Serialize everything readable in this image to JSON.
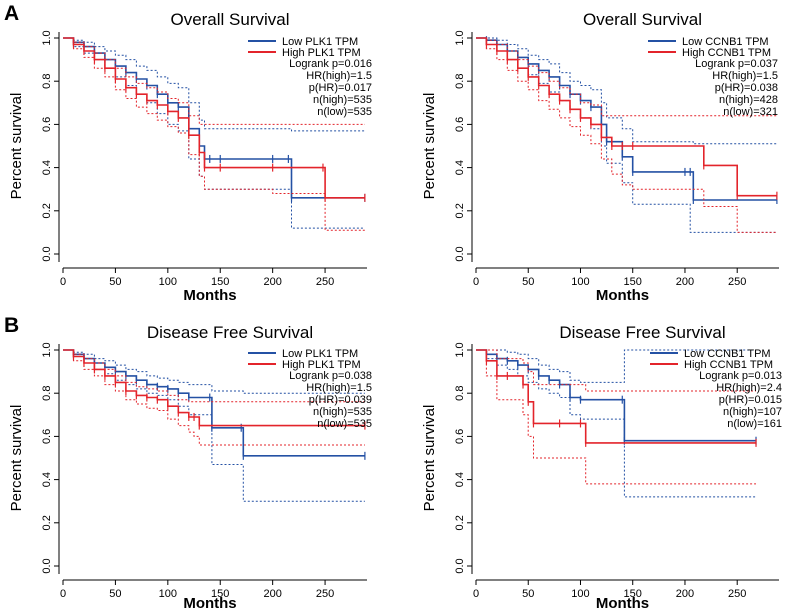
{
  "panel_letters": [
    "A",
    "B"
  ],
  "colors": {
    "low": "#2451a4",
    "high": "#e3242b",
    "axis": "#000000"
  },
  "chart_data": [
    {
      "type": "line",
      "title": "Overall Survival",
      "xlabel": "Months",
      "ylabel": "Percent survival",
      "xlim": [
        0,
        290
      ],
      "ylim": [
        0,
        1
      ],
      "xticks": [
        0,
        50,
        100,
        150,
        200,
        250
      ],
      "yticks": [
        0.0,
        0.2,
        0.4,
        0.6,
        0.8,
        1.0
      ],
      "ytick_labels": [
        "0.0",
        "0.2",
        "0.4",
        "0.6",
        "0.8",
        "1.0"
      ],
      "legend": {
        "position": "top-right",
        "entries": [
          "Low PLK1 TPM",
          "High PLK1 TPM"
        ]
      },
      "stats": [
        "Logrank p=0.016",
        "HR(high)=1.5",
        "p(HR)=0.017",
        "n(high)=535",
        "n(low)=535"
      ],
      "series": [
        {
          "name": "Low PLK1 TPM",
          "color": "#2451a4",
          "x": [
            0,
            10,
            20,
            30,
            40,
            50,
            60,
            70,
            80,
            90,
            100,
            110,
            120,
            130,
            135,
            140,
            150,
            200,
            215,
            218,
            288
          ],
          "y": [
            1.0,
            0.98,
            0.96,
            0.93,
            0.9,
            0.87,
            0.84,
            0.81,
            0.78,
            0.74,
            0.7,
            0.68,
            0.58,
            0.5,
            0.44,
            0.44,
            0.44,
            0.44,
            0.44,
            0.26,
            0.26
          ],
          "ci_upper": [
            1.0,
            0.99,
            0.98,
            0.96,
            0.94,
            0.92,
            0.9,
            0.87,
            0.85,
            0.82,
            0.79,
            0.77,
            0.7,
            0.62,
            0.58,
            0.58,
            0.58,
            0.58,
            0.58,
            0.57,
            0.57
          ],
          "ci_lower": [
            1.0,
            0.96,
            0.93,
            0.9,
            0.86,
            0.82,
            0.78,
            0.74,
            0.7,
            0.65,
            0.6,
            0.57,
            0.44,
            0.36,
            0.3,
            0.3,
            0.3,
            0.3,
            0.3,
            0.12,
            0.12
          ]
        },
        {
          "name": "High PLK1 TPM",
          "color": "#e3242b",
          "x": [
            0,
            10,
            20,
            30,
            40,
            50,
            60,
            70,
            80,
            90,
            100,
            110,
            120,
            130,
            135,
            150,
            200,
            248,
            250,
            288
          ],
          "y": [
            1.0,
            0.97,
            0.94,
            0.9,
            0.86,
            0.81,
            0.77,
            0.74,
            0.71,
            0.69,
            0.66,
            0.63,
            0.55,
            0.47,
            0.4,
            0.4,
            0.4,
            0.4,
            0.26,
            0.26
          ],
          "ci_upper": [
            1.0,
            0.98,
            0.96,
            0.93,
            0.9,
            0.86,
            0.82,
            0.79,
            0.77,
            0.75,
            0.72,
            0.7,
            0.64,
            0.6,
            0.6,
            0.6,
            0.6,
            0.6,
            0.6,
            0.6
          ],
          "ci_lower": [
            1.0,
            0.95,
            0.91,
            0.86,
            0.82,
            0.76,
            0.72,
            0.68,
            0.65,
            0.62,
            0.59,
            0.56,
            0.46,
            0.36,
            0.3,
            0.3,
            0.28,
            0.28,
            0.11,
            0.11
          ]
        }
      ]
    },
    {
      "type": "line",
      "title": "Overall Survival",
      "xlabel": "Months",
      "ylabel": "Percent survival",
      "xlim": [
        0,
        290
      ],
      "ylim": [
        0,
        1
      ],
      "xticks": [
        0,
        50,
        100,
        150,
        200,
        250
      ],
      "yticks": [
        0.0,
        0.2,
        0.4,
        0.6,
        0.8,
        1.0
      ],
      "ytick_labels": [
        "0.0",
        "0.2",
        "0.4",
        "0.6",
        "0.8",
        "1.0"
      ],
      "legend": {
        "position": "top-right",
        "entries": [
          "Low CCNB1 TPM",
          "High CCNB1 TPM"
        ]
      },
      "stats": [
        "Logrank p=0.037",
        "HR(high)=1.5",
        "p(HR)=0.038",
        "n(high)=428",
        "n(low)=321"
      ],
      "series": [
        {
          "name": "Low CCNB1 TPM",
          "color": "#2451a4",
          "x": [
            0,
            10,
            20,
            30,
            40,
            50,
            60,
            70,
            80,
            90,
            100,
            110,
            120,
            125,
            140,
            150,
            200,
            205,
            208,
            288
          ],
          "y": [
            1.0,
            0.99,
            0.97,
            0.94,
            0.91,
            0.88,
            0.85,
            0.82,
            0.78,
            0.74,
            0.71,
            0.68,
            0.6,
            0.52,
            0.45,
            0.38,
            0.38,
            0.38,
            0.25,
            0.25
          ],
          "ci_upper": [
            1.0,
            1.0,
            0.99,
            0.97,
            0.95,
            0.92,
            0.9,
            0.88,
            0.84,
            0.8,
            0.78,
            0.76,
            0.7,
            0.63,
            0.58,
            0.52,
            0.52,
            0.52,
            0.51,
            0.51
          ],
          "ci_lower": [
            1.0,
            0.97,
            0.94,
            0.9,
            0.86,
            0.83,
            0.79,
            0.75,
            0.71,
            0.67,
            0.63,
            0.58,
            0.5,
            0.42,
            0.33,
            0.23,
            0.23,
            0.1,
            0.1,
            0.1
          ]
        },
        {
          "name": "High CCNB1 TPM",
          "color": "#e3242b",
          "x": [
            0,
            10,
            20,
            30,
            40,
            50,
            60,
            70,
            80,
            90,
            100,
            110,
            120,
            130,
            140,
            150,
            218,
            250,
            288
          ],
          "y": [
            1.0,
            0.97,
            0.94,
            0.9,
            0.86,
            0.82,
            0.78,
            0.74,
            0.71,
            0.67,
            0.63,
            0.6,
            0.54,
            0.5,
            0.5,
            0.5,
            0.41,
            0.27,
            0.27
          ],
          "ci_upper": [
            1.0,
            0.99,
            0.97,
            0.94,
            0.9,
            0.87,
            0.84,
            0.8,
            0.77,
            0.74,
            0.7,
            0.69,
            0.64,
            0.64,
            0.64,
            0.64,
            0.64,
            0.64,
            0.64
          ],
          "ci_lower": [
            1.0,
            0.95,
            0.9,
            0.85,
            0.8,
            0.76,
            0.71,
            0.67,
            0.63,
            0.59,
            0.55,
            0.51,
            0.44,
            0.37,
            0.32,
            0.3,
            0.22,
            0.1,
            0.1
          ]
        }
      ]
    },
    {
      "type": "line",
      "title": "Disease Free Survival",
      "xlabel": "Months",
      "ylabel": "Percent survival",
      "xlim": [
        0,
        290
      ],
      "ylim": [
        0,
        1
      ],
      "xticks": [
        0,
        50,
        100,
        150,
        200,
        250
      ],
      "yticks": [
        0.0,
        0.2,
        0.4,
        0.6,
        0.8,
        1.0
      ],
      "ytick_labels": [
        "0.0",
        "0.2",
        "0.4",
        "0.6",
        "0.8",
        "1.0"
      ],
      "legend": {
        "position": "top-right",
        "entries": [
          "Low PLK1 TPM",
          "High PLK1 TPM"
        ]
      },
      "stats": [
        "Logrank p=0.038",
        "HR(high)=1.5",
        "p(HR)=0.039",
        "n(high)=535",
        "n(low)=535"
      ],
      "series": [
        {
          "name": "Low PLK1 TPM",
          "color": "#2451a4",
          "x": [
            0,
            10,
            20,
            30,
            40,
            50,
            60,
            70,
            80,
            90,
            100,
            110,
            120,
            140,
            142,
            170,
            172,
            288
          ],
          "y": [
            1.0,
            0.98,
            0.96,
            0.94,
            0.92,
            0.9,
            0.88,
            0.86,
            0.84,
            0.83,
            0.82,
            0.8,
            0.78,
            0.78,
            0.64,
            0.64,
            0.51,
            0.51
          ],
          "ci_upper": [
            1.0,
            0.99,
            0.98,
            0.96,
            0.95,
            0.93,
            0.91,
            0.9,
            0.88,
            0.87,
            0.86,
            0.85,
            0.84,
            0.84,
            0.81,
            0.81,
            0.8,
            0.8
          ],
          "ci_lower": [
            1.0,
            0.97,
            0.94,
            0.91,
            0.89,
            0.86,
            0.84,
            0.82,
            0.8,
            0.79,
            0.77,
            0.74,
            0.7,
            0.7,
            0.47,
            0.47,
            0.3,
            0.3
          ]
        },
        {
          "name": "High PLK1 TPM",
          "color": "#e3242b",
          "x": [
            0,
            10,
            20,
            30,
            40,
            50,
            60,
            70,
            80,
            90,
            100,
            110,
            120,
            125,
            130,
            288
          ],
          "y": [
            1.0,
            0.97,
            0.94,
            0.91,
            0.88,
            0.85,
            0.81,
            0.79,
            0.78,
            0.77,
            0.74,
            0.71,
            0.69,
            0.69,
            0.65,
            0.65
          ],
          "ci_upper": [
            1.0,
            0.98,
            0.96,
            0.94,
            0.91,
            0.88,
            0.85,
            0.83,
            0.82,
            0.81,
            0.79,
            0.77,
            0.76,
            0.76,
            0.76,
            0.76
          ],
          "ci_lower": [
            1.0,
            0.95,
            0.91,
            0.88,
            0.84,
            0.81,
            0.77,
            0.75,
            0.73,
            0.72,
            0.68,
            0.65,
            0.62,
            0.6,
            0.56,
            0.56
          ]
        }
      ]
    },
    {
      "type": "line",
      "title": "Disease Free Survival",
      "xlabel": "Months",
      "ylabel": "Percent survival",
      "xlim": [
        0,
        275
      ],
      "ylim": [
        0,
        1
      ],
      "xticks": [
        0,
        50,
        100,
        150,
        200,
        250
      ],
      "yticks": [
        0.0,
        0.2,
        0.4,
        0.6,
        0.8,
        1.0
      ],
      "ytick_labels": [
        "0.0",
        "0.2",
        "0.4",
        "0.6",
        "0.8",
        "1.0"
      ],
      "legend": {
        "position": "top-right",
        "entries": [
          "Low CCNB1 TPM",
          "High CCNB1 TPM"
        ]
      },
      "stats": [
        "Logrank p=0.013",
        "HR(high)=2.4",
        "p(HR)=0.015",
        "n(high)=107",
        "n(low)=161"
      ],
      "series": [
        {
          "name": "Low CCNB1 TPM",
          "color": "#2451a4",
          "x": [
            0,
            10,
            20,
            30,
            40,
            50,
            60,
            70,
            80,
            90,
            100,
            140,
            142,
            268
          ],
          "y": [
            1.0,
            0.98,
            0.96,
            0.95,
            0.93,
            0.91,
            0.88,
            0.86,
            0.84,
            0.78,
            0.77,
            0.77,
            0.58,
            0.58
          ],
          "ci_upper": [
            1.0,
            1.0,
            1.0,
            0.99,
            0.98,
            0.96,
            0.93,
            0.91,
            0.9,
            0.86,
            0.85,
            0.85,
            1.0,
            1.0
          ],
          "ci_lower": [
            1.0,
            0.96,
            0.93,
            0.91,
            0.88,
            0.85,
            0.82,
            0.8,
            0.78,
            0.7,
            0.68,
            0.68,
            0.32,
            0.32
          ]
        },
        {
          "name": "High CCNB1 TPM",
          "color": "#e3242b",
          "x": [
            0,
            10,
            20,
            30,
            45,
            50,
            55,
            80,
            100,
            105,
            268
          ],
          "y": [
            1.0,
            0.95,
            0.88,
            0.88,
            0.84,
            0.76,
            0.66,
            0.66,
            0.66,
            0.57,
            0.57
          ],
          "ci_upper": [
            1.0,
            1.0,
            0.96,
            0.96,
            0.94,
            0.9,
            0.84,
            0.84,
            0.84,
            0.81,
            0.81
          ],
          "ci_lower": [
            1.0,
            0.88,
            0.77,
            0.77,
            0.7,
            0.6,
            0.5,
            0.5,
            0.5,
            0.38,
            0.38
          ]
        }
      ]
    }
  ]
}
